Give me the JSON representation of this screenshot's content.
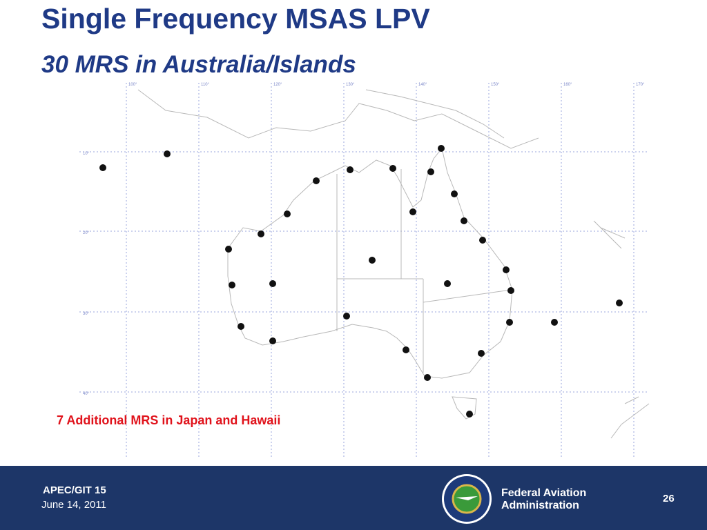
{
  "header": {
    "title": "Single Frequency MSAS LPV",
    "subtitle": "30 MRS in Australia/Islands"
  },
  "map": {
    "longitude_labels": [
      "100°",
      "110°",
      "120°",
      "130°",
      "140°",
      "150°",
      "160°",
      "170°"
    ],
    "latitude_labels": [
      "10°",
      "20°",
      "30°",
      "40°"
    ],
    "annotation": "7 Additional MRS in Japan and Hawaii"
  },
  "footer": {
    "event": "APEC/GIT 15",
    "date": "June 14, 2011",
    "agency_line1": "Federal Aviation",
    "agency_line2": "Administration",
    "page": "26"
  }
}
